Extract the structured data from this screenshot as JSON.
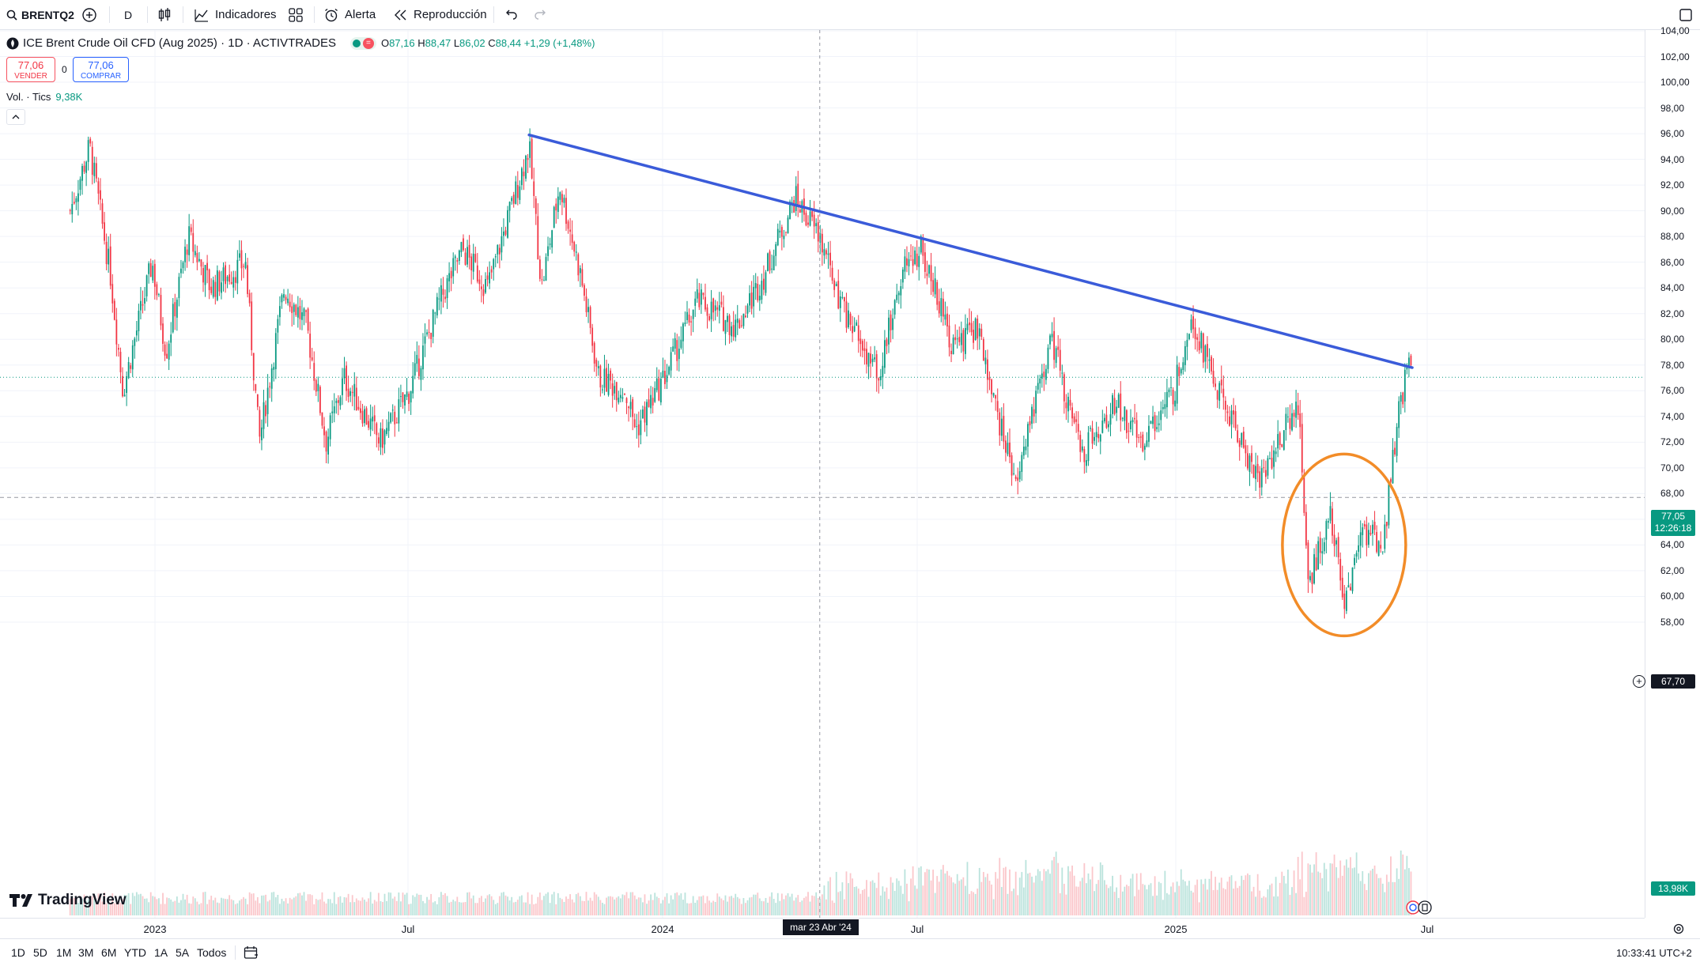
{
  "toolbar": {
    "symbol": "BRENTQ2",
    "interval": "D",
    "indicators_label": "Indicadores",
    "alert_label": "Alerta",
    "replay_label": "Reproducción"
  },
  "legend": {
    "title": "ICE Brent Crude Oil CFD (Aug 2025) · 1D · ACTIVTRADES",
    "open_label": "O",
    "open": "87,16",
    "high_label": "H",
    "high": "88,47",
    "low_label": "L",
    "low": "86,02",
    "close_label": "C",
    "close": "88,44",
    "change": "+1,29 (+1,48%)",
    "pill_icon": "equals-icon"
  },
  "trade": {
    "sell_price": "77,06",
    "sell_label": "VENDER",
    "spread": "0",
    "buy_price": "77,06",
    "buy_label": "COMPRAR"
  },
  "volume_legend": {
    "label": "Vol. · Tics",
    "value": "9,38K"
  },
  "price_axis": [
    "104,00",
    "102,00",
    "100,00",
    "98,00",
    "96,00",
    "94,00",
    "92,00",
    "90,00",
    "88,00",
    "86,00",
    "84,00",
    "82,00",
    "80,00",
    "78,00",
    "76,00",
    "74,00",
    "72,00",
    "70,00",
    "68,00",
    "66,00",
    "64,00",
    "62,00",
    "60,00",
    "58,00"
  ],
  "price_tags": {
    "last_price": "77,05",
    "countdown": "12:26:18",
    "crosshair_price": "67,70",
    "volume_tag": "13,98K"
  },
  "time_axis": [
    "2023",
    "Jul",
    "2024",
    "Jul",
    "2025",
    "Jul"
  ],
  "crosshair_date": "mar 23 Abr '24",
  "brand": "TradingView",
  "bottom": {
    "ranges": [
      "1D",
      "5D",
      "1M",
      "3M",
      "6M",
      "YTD",
      "1A",
      "5A",
      "Todos"
    ],
    "clock": "10:33:41 UTC+2"
  },
  "colors": {
    "up": "#089981",
    "down": "#f23645",
    "trendline": "#3a5bd9",
    "circle": "#f28c28"
  },
  "chart_data": {
    "type": "candlestick",
    "title": "ICE Brent Crude Oil CFD (Aug 2025) · 1D · ACTIVTRADES",
    "ylim": [
      56,
      105
    ],
    "trendline": [
      {
        "date": "2023-09-27",
        "price": 95.9
      },
      {
        "date": "2025-06-23",
        "price": 77.8
      }
    ],
    "highlight_ellipse": {
      "center_date": "2025-05-05",
      "center_price": 64.0
    },
    "price_path": [
      {
        "date": "2022-11-01",
        "price": 90
      },
      {
        "date": "2022-11-15",
        "price": 95
      },
      {
        "date": "2022-11-30",
        "price": 85
      },
      {
        "date": "2022-12-09",
        "price": 76
      },
      {
        "date": "2022-12-30",
        "price": 86
      },
      {
        "date": "2023-01-09",
        "price": 79
      },
      {
        "date": "2023-01-25",
        "price": 88
      },
      {
        "date": "2023-02-10",
        "price": 84
      },
      {
        "date": "2023-03-07",
        "price": 86
      },
      {
        "date": "2023-03-17",
        "price": 72
      },
      {
        "date": "2023-04-04",
        "price": 84
      },
      {
        "date": "2023-04-20",
        "price": 81
      },
      {
        "date": "2023-05-04",
        "price": 72
      },
      {
        "date": "2023-05-17",
        "price": 77
      },
      {
        "date": "2023-06-12",
        "price": 72
      },
      {
        "date": "2023-07-03",
        "price": 76
      },
      {
        "date": "2023-07-25",
        "price": 83
      },
      {
        "date": "2023-08-10",
        "price": 87
      },
      {
        "date": "2023-08-28",
        "price": 84
      },
      {
        "date": "2023-09-27",
        "price": 95
      },
      {
        "date": "2023-10-06",
        "price": 84
      },
      {
        "date": "2023-10-19",
        "price": 92
      },
      {
        "date": "2023-11-03",
        "price": 85
      },
      {
        "date": "2023-11-16",
        "price": 77
      },
      {
        "date": "2023-12-05",
        "price": 76
      },
      {
        "date": "2023-12-13",
        "price": 73
      },
      {
        "date": "2024-01-02",
        "price": 77
      },
      {
        "date": "2024-01-26",
        "price": 83
      },
      {
        "date": "2024-02-23",
        "price": 81
      },
      {
        "date": "2024-03-14",
        "price": 85
      },
      {
        "date": "2024-04-05",
        "price": 91
      },
      {
        "date": "2024-04-23",
        "price": 88
      },
      {
        "date": "2024-05-06",
        "price": 83
      },
      {
        "date": "2024-06-04",
        "price": 77
      },
      {
        "date": "2024-06-20",
        "price": 85
      },
      {
        "date": "2024-07-05",
        "price": 87
      },
      {
        "date": "2024-07-29",
        "price": 79
      },
      {
        "date": "2024-08-13",
        "price": 81
      },
      {
        "date": "2024-09-10",
        "price": 69
      },
      {
        "date": "2024-10-07",
        "price": 80
      },
      {
        "date": "2024-10-28",
        "price": 71
      },
      {
        "date": "2024-11-22",
        "price": 75
      },
      {
        "date": "2024-12-10",
        "price": 72
      },
      {
        "date": "2025-01-03",
        "price": 76
      },
      {
        "date": "2025-01-15",
        "price": 82
      },
      {
        "date": "2025-02-03",
        "price": 76
      },
      {
        "date": "2025-03-05",
        "price": 69
      },
      {
        "date": "2025-04-02",
        "price": 75
      },
      {
        "date": "2025-04-09",
        "price": 61
      },
      {
        "date": "2025-04-25",
        "price": 66
      },
      {
        "date": "2025-05-05",
        "price": 60
      },
      {
        "date": "2025-05-20",
        "price": 65
      },
      {
        "date": "2025-06-02",
        "price": 64
      },
      {
        "date": "2025-06-13",
        "price": 74
      },
      {
        "date": "2025-06-20",
        "price": 78
      },
      {
        "date": "2025-06-23",
        "price": 77
      }
    ]
  }
}
